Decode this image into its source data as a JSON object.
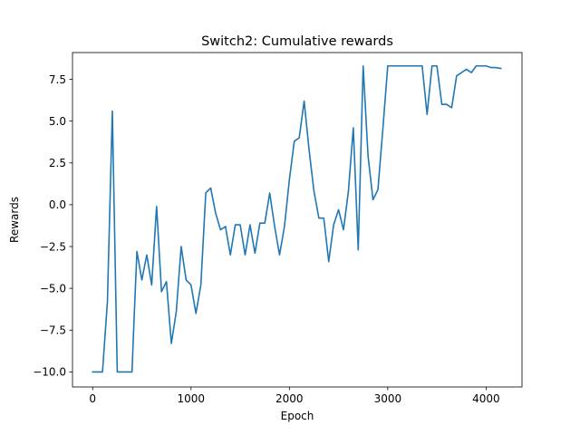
{
  "chart_data": {
    "type": "line",
    "title": "Switch2: Cumulative rewards",
    "xlabel": "Epoch",
    "ylabel": "Rewards",
    "xlim": [
      -205,
      4365
    ],
    "ylim": [
      -10.9,
      9.1
    ],
    "xticks": [
      0,
      1000,
      2000,
      3000,
      4000
    ],
    "yticks": [
      -10.0,
      -7.5,
      -5.0,
      -2.5,
      0.0,
      2.5,
      5.0,
      7.5
    ],
    "xtick_labels": [
      "0",
      "1000",
      "2000",
      "3000",
      "4000"
    ],
    "ytick_labels": [
      "−10.0",
      "−7.5",
      "−5.0",
      "−2.5",
      "0.0",
      "2.5",
      "5.0",
      "7.5"
    ],
    "grid": false,
    "series": [
      {
        "color": "#1f77b4",
        "x": [
          0,
          100,
          150,
          200,
          250,
          300,
          350,
          400,
          420,
          450,
          500,
          550,
          600,
          650,
          700,
          750,
          800,
          850,
          900,
          950,
          1000,
          1050,
          1100,
          1150,
          1200,
          1250,
          1300,
          1350,
          1400,
          1450,
          1500,
          1550,
          1600,
          1650,
          1700,
          1750,
          1800,
          1850,
          1900,
          1950,
          2000,
          2050,
          2100,
          2150,
          2200,
          2250,
          2300,
          2350,
          2400,
          2450,
          2500,
          2550,
          2600,
          2650,
          2700,
          2750,
          2800,
          2850,
          2900,
          2950,
          3000,
          3050,
          3100,
          3150,
          3200,
          3250,
          3300,
          3350,
          3400,
          3450,
          3500,
          3550,
          3600,
          3650,
          3700,
          3750,
          3800,
          3850,
          3900,
          3950,
          4000,
          4050,
          4100,
          4150
        ],
        "y": [
          -10.0,
          -10.0,
          -5.8,
          5.6,
          -10.0,
          -10.0,
          -10.0,
          -10.0,
          -7.0,
          -2.8,
          -4.5,
          -3.0,
          -4.8,
          -0.1,
          -5.2,
          -4.6,
          -8.3,
          -6.4,
          -2.5,
          -4.5,
          -4.8,
          -6.5,
          -4.8,
          0.7,
          1.0,
          -0.5,
          -1.5,
          -1.3,
          -3.0,
          -1.2,
          -1.2,
          -3.0,
          -1.2,
          -2.9,
          -1.1,
          -1.1,
          0.7,
          -1.3,
          -3.0,
          -1.3,
          1.5,
          3.8,
          4.0,
          6.2,
          3.3,
          0.8,
          -0.8,
          -0.8,
          -3.4,
          -1.2,
          -0.3,
          -1.5,
          0.8,
          4.6,
          -2.7,
          8.3,
          2.9,
          0.3,
          0.9,
          4.5,
          8.3,
          8.3,
          8.3,
          8.3,
          8.3,
          8.3,
          8.3,
          8.3,
          5.4,
          8.3,
          8.3,
          6.0,
          6.0,
          5.8,
          7.7,
          7.9,
          8.1,
          7.9,
          8.3,
          8.3,
          8.3,
          8.2,
          8.2,
          8.15
        ]
      }
    ]
  }
}
